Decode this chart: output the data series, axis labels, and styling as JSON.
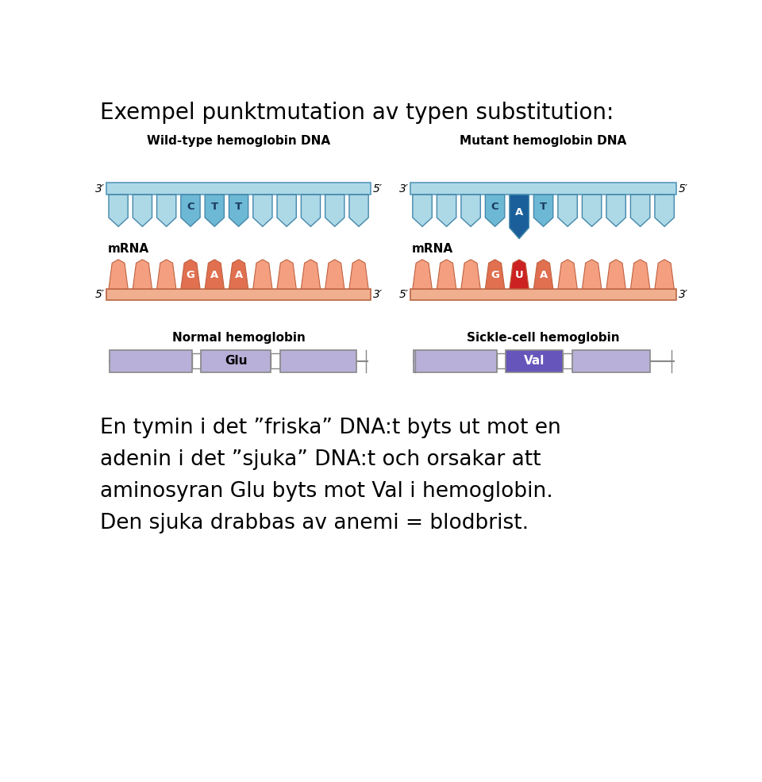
{
  "title": "Exempel punktmutation av typen substitution:",
  "title_fontsize": 20,
  "bg_color": "#ffffff",
  "dna_color_light": "#add8e6",
  "dna_color_mid": "#6db8d4",
  "dna_color_dark": "#1a5f9a",
  "mrna_color_light": "#f4a080",
  "mrna_color_mid": "#e07050",
  "mrna_color_red": "#cc2222",
  "protein_color_light": "#b8b0d8",
  "protein_color_mutant": "#6655bb",
  "wild_title": "Wild-type hemoglobin DNA",
  "mutant_title": "Mutant hemoglobin DNA",
  "mrna_label": "mRNA",
  "wild_bases": [
    "C",
    "T",
    "T"
  ],
  "mutant_bases": [
    "C",
    "A",
    "T"
  ],
  "wild_codons": [
    "G",
    "A",
    "A"
  ],
  "mutant_codons": [
    "G",
    "U",
    "A"
  ],
  "normal_protein_label": "Normal hemoglobin",
  "mutant_protein_label": "Sickle-cell hemoglobin",
  "normal_aa": "Glu",
  "mutant_aa": "Val",
  "text_lines": [
    "En tymin i det ”friska” DNA:t byts ut mot en",
    "adenin i det ”sjuka” DNA:t och orsakar att",
    "aminosyran Glu byts mot Val i hemoglobin.",
    "Den sjuka drabbas av anemi = blodbrist."
  ],
  "text_fontsize": 19
}
